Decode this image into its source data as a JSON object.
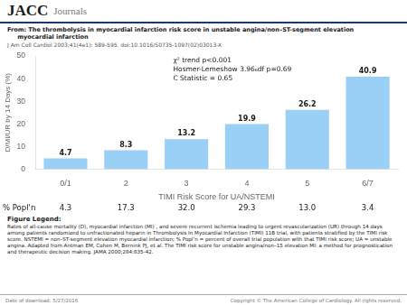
{
  "chart_data": {
    "type": "bar",
    "header": [
      "JACC",
      "Journals"
    ],
    "title": [
      "From: The thrombolysis in myocardial infarction risk score in unstable angina/non–ST-segment elevation",
      "     myocardial infarction"
    ],
    "subtitle": "J Am Coll Cardiol 2003;41(4e1): 589-595. doi:10.1016/S0735-1097(02)03013-X",
    "categories": [
      "0/1",
      "2",
      "3",
      "4",
      "5",
      "6/7"
    ],
    "values": [
      4.7,
      8.3,
      13.2,
      19.9,
      26.2,
      40.9
    ],
    "data_labels": true,
    "xlabel": "TIMI Risk Score for UA/NSTEMI",
    "ylabel": "D/MI/UR by 14 Days (%)",
    "ylim": [
      0,
      50
    ],
    "yticks": [
      0,
      10,
      20,
      30,
      40,
      50
    ],
    "grid": false,
    "annotations": [
      "χ² trend p<0.001\nHosmer-Lemeshow 3.96₆df p=0.69\nC Statistic = 0.65"
    ],
    "rows": [
      {
        "name": "% Popl'n",
        "values": [
          4.3,
          17.3,
          32.0,
          29.3,
          13.0,
          3.4
        ],
        "value_labels": [
          "4.3",
          "17.3",
          "32.0",
          "29.3",
          "13.0",
          "3.4"
        ]
      }
    ],
    "caption": [
      "Figure Legend:",
      "Rates of all-cause mortality (D), myocardial infarction (MI) , and severe recurrent ischemia leading to urgent revascularization (UR) through 14 days among patients randomized to unfractionated heparin in Thrombolysis In Myocardial Infarction (TIMI) 11B trial, with patients stratified by the TIMI risk score. NSTEMI = non–ST-segment elevation myocardial infarction; % Popl’n = percent of overall trial population with that TIMI risk score; UA = unstable angina. Adapted from Antman EM, Cohen M, Bernink PJ, et al. The TIMI risk score for unstable angina/non–15 elevation MI: a method for prognostication and therapeutic decision making. JAMA 2000;284:835-42."
    ],
    "footer": [
      "Date of download: 5/27/2016",
      "Copyright © The American College of Cardiology. All rights reserved."
    ]
  }
}
